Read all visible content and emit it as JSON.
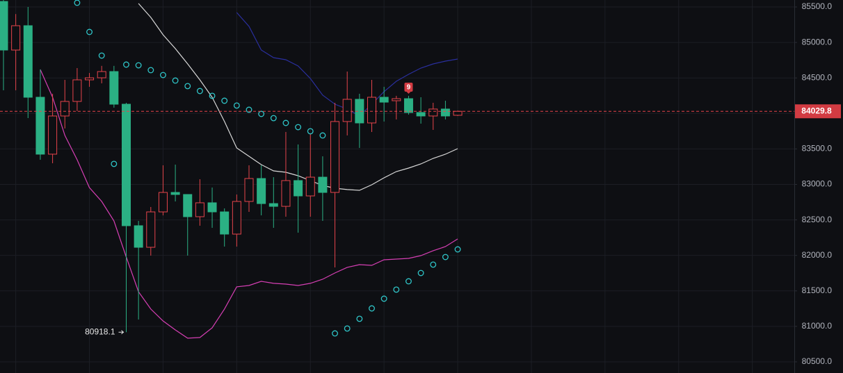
{
  "chart_data": {
    "type": "candlestick",
    "up_color": "#e5444b",
    "down_color": "#2bb084",
    "ylim": [
      80343,
      85598
    ],
    "yticks": [
      {
        "value": 80500,
        "label": "80500.0"
      },
      {
        "value": 81000,
        "label": "81000.0"
      },
      {
        "value": 81500,
        "label": "81500.0"
      },
      {
        "value": 82000,
        "label": "82000.0"
      },
      {
        "value": 82500,
        "label": "82500.0"
      },
      {
        "value": 83000,
        "label": "83000.0"
      },
      {
        "value": 83500,
        "label": "83500.0"
      },
      {
        "value": 84000,
        "label": "84000.0"
      },
      {
        "value": 84500,
        "label": "84500.0"
      },
      {
        "value": 85000,
        "label": "85000.0"
      },
      {
        "value": 85500,
        "label": "85500.0"
      }
    ],
    "grid": true,
    "open": [
      85578,
      84893,
      85236,
      84228,
      83426,
      83964,
      84169,
      84473,
      84502,
      84590,
      84130,
      82418,
      82114,
      82613,
      82887,
      82858,
      82545,
      82741,
      82613,
      82300,
      82760,
      83083,
      82730,
      82691,
      83054,
      82838,
      83102,
      82887,
      83886,
      84199,
      83866,
      84228,
      84179,
      84208,
      84013,
      83964,
      84062,
      83974
    ],
    "high": [
      85598,
      85400,
      85500,
      84619,
      84277,
      84473,
      84639,
      84570,
      84670,
      84670,
      84150,
      82486,
      82682,
      83269,
      83279,
      82858,
      83073,
      82956,
      82662,
      82858,
      83269,
      83269,
      83102,
      83739,
      83563,
      83719,
      83396,
      84150,
      84590,
      84277,
      84473,
      84375,
      84248,
      84248,
      84228,
      84150,
      84179,
      84040
    ],
    "low": [
      84326,
      84326,
      83934,
      83347,
      83298,
      83788,
      84032,
      84375,
      84424,
      84081,
      80918.1,
      81097,
      81997,
      82564,
      82760,
      81997,
      82418,
      82388,
      82124,
      82124,
      82613,
      82564,
      82388,
      82545,
      82320,
      82545,
      82486,
      81831,
      83690,
      83514,
      83739,
      83886,
      83915,
      83983,
      83856,
      83768,
      83915,
      83964
    ],
    "close": [
      84893,
      85236,
      84228,
      83426,
      83964,
      84169,
      84473,
      84502,
      84590,
      84130,
      82418,
      82114,
      82613,
      82887,
      82858,
      82545,
      82741,
      82613,
      82300,
      82760,
      83083,
      82730,
      82691,
      83054,
      82838,
      83102,
      82887,
      83886,
      84199,
      83866,
      84228,
      84159,
      84208,
      84013,
      83964,
      84062,
      83964,
      84029.8
    ],
    "upper_band": {
      "color": "#2a2f9e",
      "values": [
        null,
        null,
        null,
        null,
        null,
        null,
        null,
        null,
        null,
        null,
        null,
        null,
        null,
        null,
        null,
        null,
        null,
        null,
        null,
        85422,
        85226,
        84893,
        84786,
        84756,
        84668,
        84492,
        84257,
        84130,
        84062,
        83964,
        84130,
        84306,
        84453,
        84551,
        84639,
        84698,
        84737,
        84766
      ]
    },
    "middle_band": {
      "color": "#d8d8d8",
      "values": [
        null,
        null,
        null,
        null,
        null,
        null,
        null,
        null,
        null,
        null,
        null,
        85549,
        85353,
        85109,
        84913,
        84698,
        84473,
        84228,
        83886,
        83514,
        83396,
        83279,
        83191,
        83171,
        83122,
        83054,
        82985,
        82946,
        82927,
        82917,
        82995,
        83093,
        83181,
        83230,
        83289,
        83367,
        83426,
        83504
      ]
    },
    "lower_band": {
      "color": "#d63fb4",
      "values": [
        null,
        null,
        null,
        84619,
        84228,
        83690,
        83347,
        82956,
        82760,
        82486,
        81977,
        81488,
        81244,
        81077,
        80950,
        80833,
        80843,
        80979,
        81244,
        81557,
        81576,
        81635,
        81606,
        81596,
        81576,
        81606,
        81664,
        81752,
        81831,
        81870,
        81860,
        81938,
        81948,
        81958,
        81997,
        82066,
        82124,
        82232
      ]
    },
    "sar": {
      "color": "#2fc6c9",
      "values": [
        null,
        null,
        null,
        null,
        null,
        null,
        85559,
        85148,
        84815,
        83289,
        84688,
        84678,
        84610,
        84541,
        84463,
        84385,
        84316,
        84248,
        84179,
        84111,
        84052,
        83993,
        83934,
        83866,
        83807,
        83749,
        83690,
        80901,
        80970,
        81107,
        81253,
        81390,
        81518,
        81635,
        81752,
        81870,
        81977,
        82085
      ]
    },
    "last_price": 84029.8,
    "low_marker": 80918.1,
    "signal": "9"
  }
}
